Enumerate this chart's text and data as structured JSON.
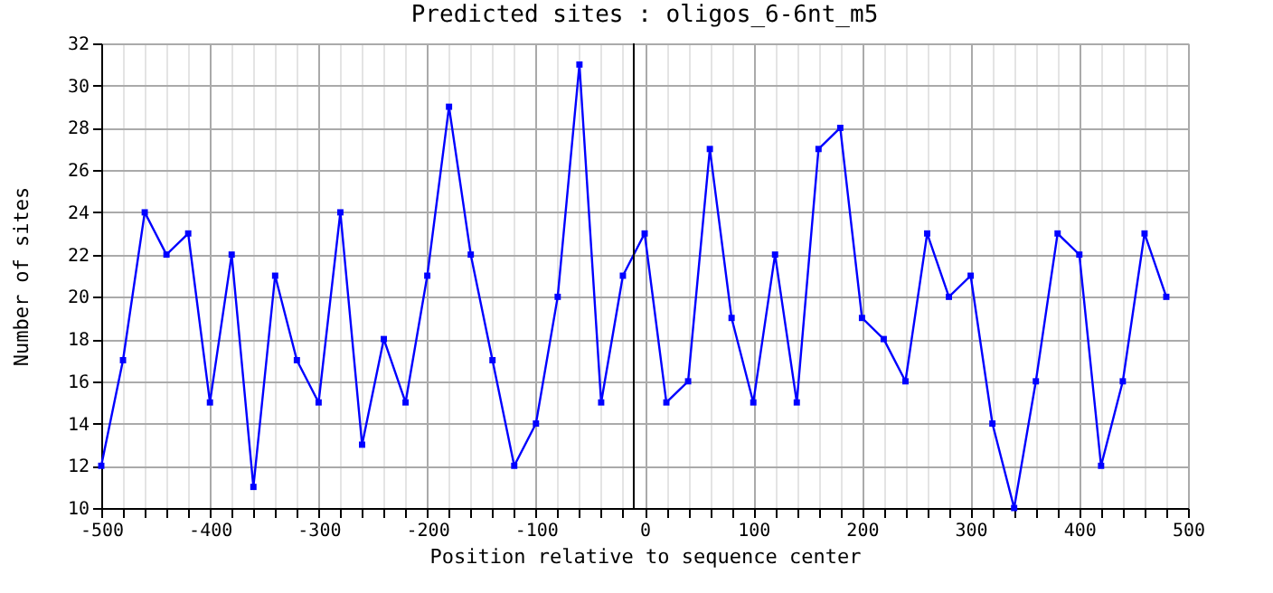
{
  "chart_data": {
    "type": "line",
    "title": "Predicted sites : oligos_6-6nt_m5",
    "xlabel": "Position relative to sequence center",
    "ylabel": "Number of sites",
    "x": [
      -500,
      -480,
      -460,
      -440,
      -420,
      -400,
      -380,
      -360,
      -340,
      -320,
      -300,
      -280,
      -260,
      -240,
      -220,
      -200,
      -180,
      -160,
      -140,
      -120,
      -100,
      -80,
      -60,
      -40,
      -20,
      0,
      20,
      40,
      60,
      80,
      100,
      120,
      140,
      160,
      180,
      200,
      220,
      240,
      260,
      280,
      300,
      320,
      340,
      360,
      380,
      400,
      420,
      440,
      460,
      480
    ],
    "series": [
      {
        "color": "#0000ff",
        "values": [
          12,
          17,
          24,
          22,
          23,
          15,
          22,
          11,
          21,
          17,
          15,
          24,
          13,
          18,
          15,
          21,
          29,
          22,
          17,
          12,
          14,
          20,
          31,
          15,
          21,
          23,
          15,
          16,
          27,
          19,
          15,
          22,
          15,
          27,
          28,
          19,
          18,
          16,
          23,
          20,
          21,
          14,
          10,
          16,
          23,
          22,
          12,
          16,
          23,
          20
        ]
      }
    ],
    "xlim": [
      -500,
      500
    ],
    "xticks": [
      -500,
      {
        "value": -480,
        "label": null
      },
      {
        "value": -460,
        "label": null
      },
      {
        "value": -440,
        "label": null
      },
      {
        "value": -420,
        "label": null
      },
      -400,
      {
        "value": -380,
        "label": null
      },
      {
        "value": -360,
        "label": null
      },
      {
        "value": -340,
        "label": null
      },
      {
        "value": -320,
        "label": null
      },
      -300,
      {
        "value": -280,
        "label": null
      },
      {
        "value": -260,
        "label": null
      },
      {
        "value": -240,
        "label": null
      },
      {
        "value": -220,
        "label": null
      },
      -200,
      {
        "value": -180,
        "label": null
      },
      {
        "value": -160,
        "label": null
      },
      {
        "value": -140,
        "label": null
      },
      {
        "value": -120,
        "label": null
      },
      -100,
      {
        "value": -80,
        "label": null
      },
      {
        "value": -60,
        "label": null
      },
      {
        "value": -40,
        "label": null
      },
      {
        "value": -20,
        "label": null
      },
      0,
      {
        "value": 20,
        "label": null
      },
      {
        "value": 40,
        "label": null
      },
      {
        "value": 60,
        "label": null
      },
      {
        "value": 80,
        "label": null
      },
      100,
      {
        "value": 120,
        "label": null
      },
      {
        "value": 140,
        "label": null
      },
      {
        "value": 160,
        "label": null
      },
      {
        "value": 180,
        "label": null
      },
      200,
      {
        "value": 220,
        "label": null
      },
      {
        "value": 240,
        "label": null
      },
      {
        "value": 260,
        "label": null
      },
      {
        "value": 280,
        "label": null
      },
      300,
      {
        "value": 320,
        "label": null
      },
      {
        "value": 340,
        "label": null
      },
      {
        "value": 360,
        "label": null
      },
      {
        "value": 380,
        "label": null
      },
      400,
      {
        "value": 420,
        "label": null
      },
      {
        "value": 440,
        "label": null
      },
      {
        "value": 460,
        "label": null
      },
      {
        "value": 480,
        "label": null
      },
      500
    ],
    "ylim": [
      10,
      32
    ],
    "yticks": [
      10,
      12,
      14,
      16,
      18,
      20,
      22,
      24,
      26,
      28,
      30,
      32
    ],
    "grid": true,
    "marker": "square",
    "line_style": "solid",
    "ref_lines": [
      {
        "axis": "x",
        "value": -10,
        "color": "#000000"
      }
    ]
  }
}
